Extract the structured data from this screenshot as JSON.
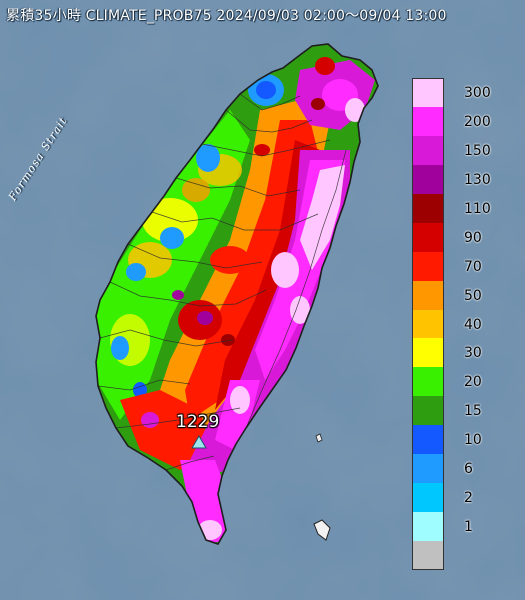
{
  "title": "累積35小時 CLIMATE_PROB75 2024/09/03 02:00～09/04 13:00",
  "strait_label": "Formosa Strait",
  "station": {
    "value": "1229",
    "marker_color": "#9ee6ee"
  },
  "colors": {
    "ocean": "#6d8fae",
    "land_outline": "#2a2a2a"
  },
  "legend": [
    {
      "label": "300",
      "color": "#ffc6ff"
    },
    {
      "label": "200",
      "color": "#ff2bff"
    },
    {
      "label": "150",
      "color": "#d81ad8"
    },
    {
      "label": "130",
      "color": "#a0009c"
    },
    {
      "label": "110",
      "color": "#9c0000"
    },
    {
      "label": "90",
      "color": "#d40000"
    },
    {
      "label": "70",
      "color": "#ff1a00"
    },
    {
      "label": "50",
      "color": "#ff9800"
    },
    {
      "label": "40",
      "color": "#ffc300"
    },
    {
      "label": "30",
      "color": "#ffff00"
    },
    {
      "label": "20",
      "color": "#38f000"
    },
    {
      "label": "15",
      "color": "#2e9e10"
    },
    {
      "label": "10",
      "color": "#1459ff"
    },
    {
      "label": "6",
      "color": "#1f9bff"
    },
    {
      "label": "2",
      "color": "#00c8ff"
    },
    {
      "label": "1",
      "color": "#9ffcff"
    },
    {
      "label": "",
      "color": "#c0c0c0"
    }
  ]
}
